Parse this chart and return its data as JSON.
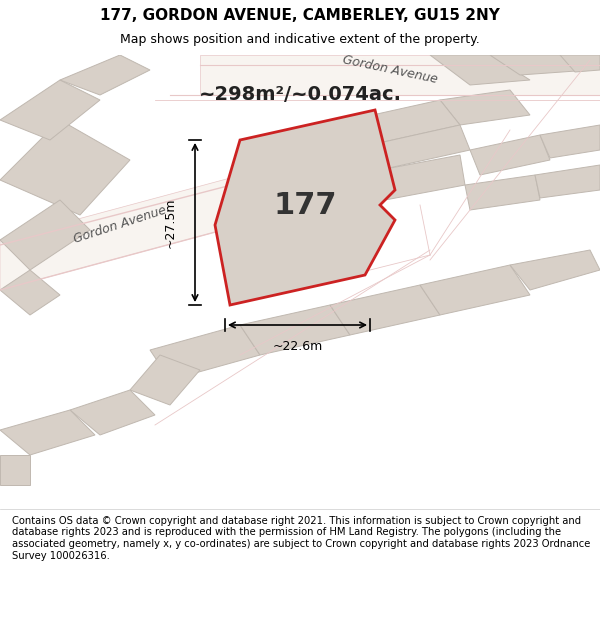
{
  "title": "177, GORDON AVENUE, CAMBERLEY, GU15 2NY",
  "subtitle": "Map shows position and indicative extent of the property.",
  "area_text": "~298m²/~0.074ac.",
  "property_number": "177",
  "dim_width": "~22.6m",
  "dim_height": "~27.5m",
  "footer": "Contains OS data © Crown copyright and database right 2021. This information is subject to Crown copyright and database rights 2023 and is reproduced with the permission of HM Land Registry. The polygons (including the associated geometry, namely x, y co-ordinates) are subject to Crown copyright and database rights 2023 Ordnance Survey 100026316.",
  "bg_color": "#f0ece8",
  "map_bg": "#f5f0eb",
  "road_color": "#ffffff",
  "road_border_color": "#e8c8c8",
  "building_fill": "#d8d0c8",
  "building_stroke": "#c0b8b0",
  "highlight_fill": "#d8d0c8",
  "highlight_stroke": "#cc2222",
  "gordon_ave_label": "Gordon Avenue",
  "gordon_ave2_label": "Gordon Avenue",
  "title_fontsize": 11,
  "subtitle_fontsize": 9,
  "footer_fontsize": 7.2
}
